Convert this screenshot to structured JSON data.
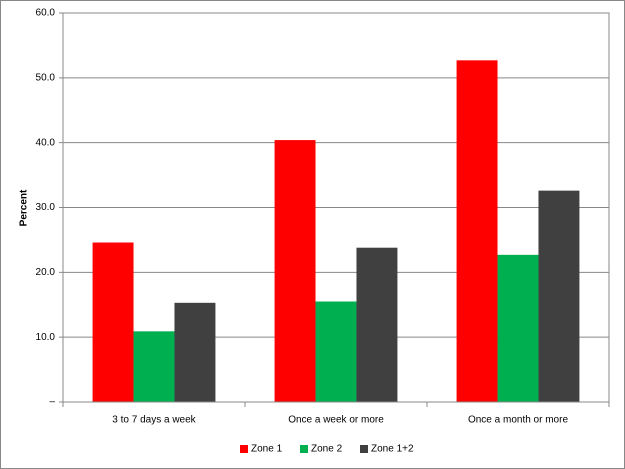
{
  "chart_data": {
    "type": "bar",
    "y_label": "Percent",
    "categories": [
      "3 to 7 days a week",
      "Once a week or more",
      "Once a month or more"
    ],
    "series": [
      {
        "name": "Zone 1",
        "color": "#ff0000",
        "values": [
          24.6,
          40.4,
          52.7
        ]
      },
      {
        "name": "Zone 2",
        "color": "#00b050",
        "values": [
          10.9,
          15.5,
          22.7
        ]
      },
      {
        "name": "Zone 1+2",
        "color": "#404040",
        "values": [
          15.3,
          23.8,
          32.6
        ]
      }
    ],
    "ylim": [
      0,
      60
    ],
    "yticks": [
      {
        "value": 0,
        "label": "–"
      },
      {
        "value": 10,
        "label": "10.0"
      },
      {
        "value": 20,
        "label": "20.0"
      },
      {
        "value": 30,
        "label": "30.0"
      },
      {
        "value": 40,
        "label": "40.0"
      },
      {
        "value": 50,
        "label": "50.0"
      },
      {
        "value": 60,
        "label": "60.0"
      }
    ],
    "grid": true,
    "legend": "bottom"
  }
}
